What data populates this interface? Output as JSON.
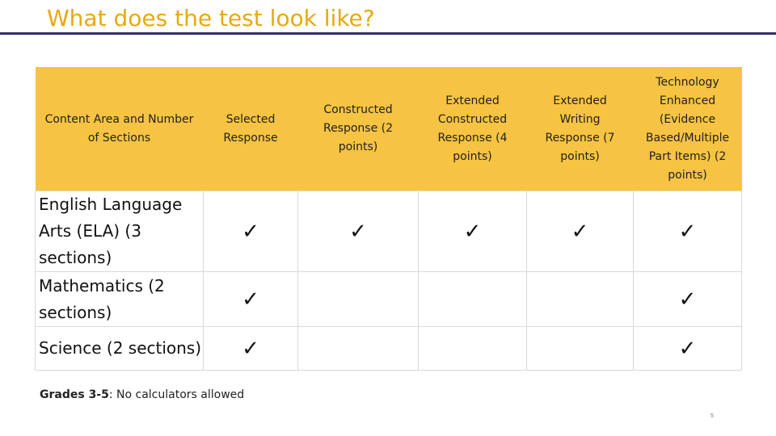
{
  "title": "What does the test look like?",
  "table": {
    "headers": [
      "Content Area and Number of Sections",
      "Selected Response",
      "Constructed Response (2 points)",
      "Extended Constructed Response (4 points)",
      "Extended Writing Response (7 points)",
      "Technology Enhanced (Evidence Based/Multiple Part Items) (2 points)"
    ],
    "rows": [
      {
        "label": "English Language Arts (ELA) (3 sections)",
        "cells": [
          "✓",
          "✓",
          "✓",
          "✓",
          "✓"
        ]
      },
      {
        "label": "Mathematics (2 sections)",
        "cells": [
          "✓",
          "",
          "",
          "",
          "✓"
        ]
      },
      {
        "label": "Science (2 sections)",
        "cells": [
          "✓",
          "",
          "",
          "",
          "✓"
        ]
      }
    ]
  },
  "footnote": {
    "bold": "Grades 3-5",
    "text": ": No calculators allowed"
  },
  "page_number": "5",
  "colors": {
    "title": "#E8A90E",
    "rule": "#2E2D6B",
    "header_fill": "#F6C342"
  }
}
